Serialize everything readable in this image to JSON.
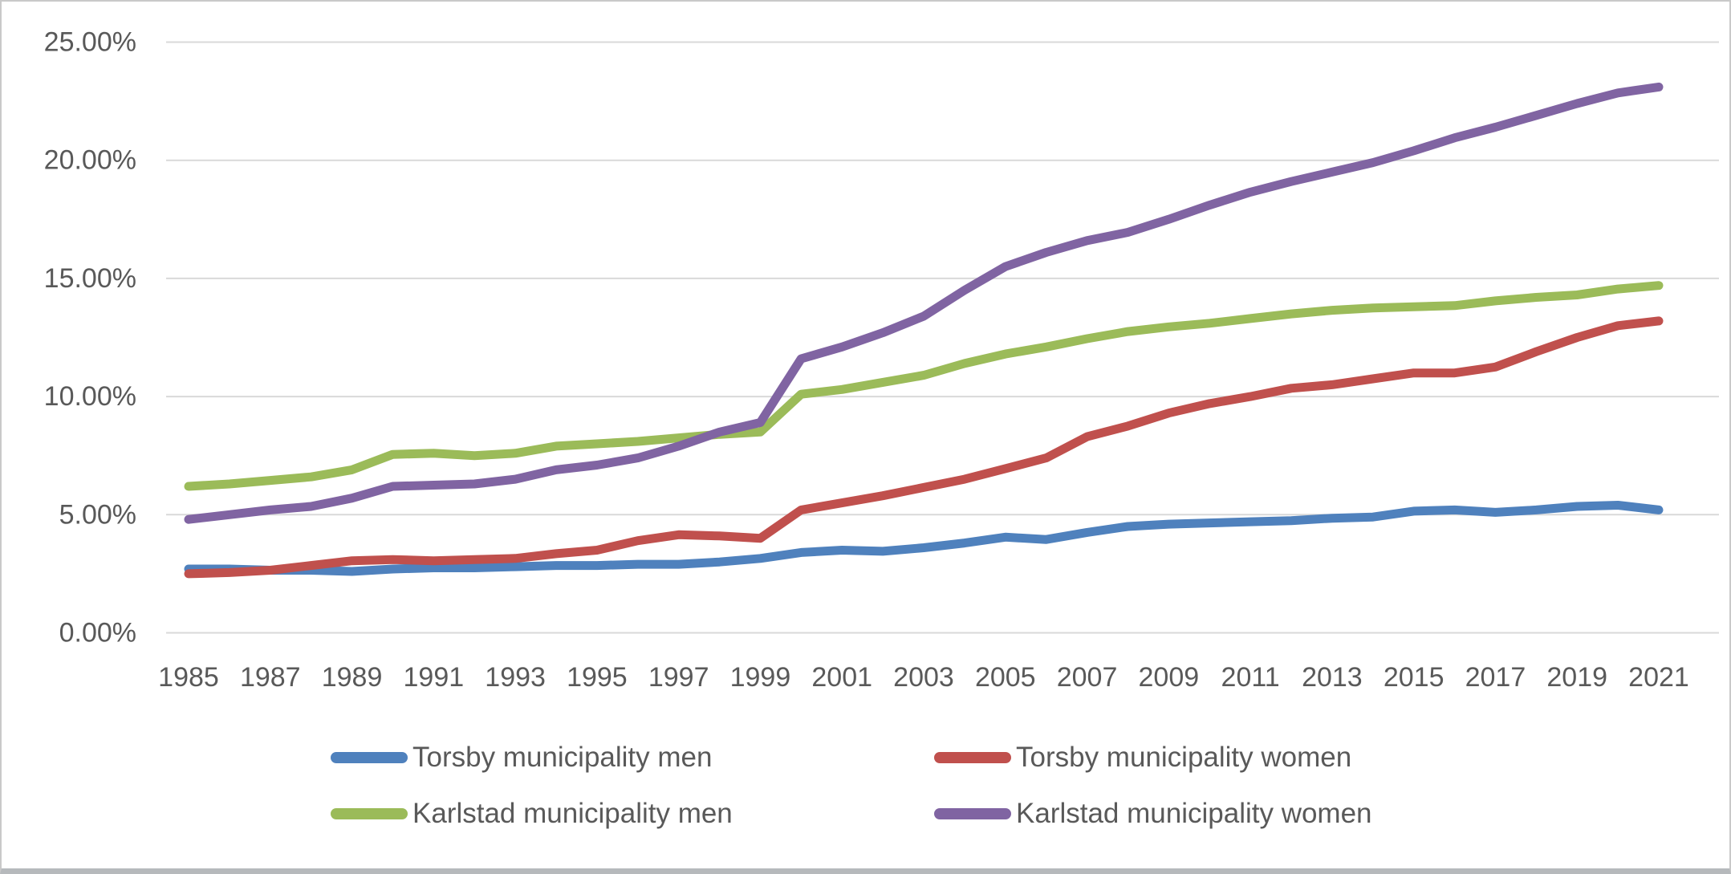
{
  "chart_data": {
    "type": "line",
    "x": [
      1985,
      1986,
      1987,
      1988,
      1989,
      1990,
      1991,
      1992,
      1993,
      1994,
      1995,
      1996,
      1997,
      1998,
      1999,
      2000,
      2001,
      2002,
      2003,
      2004,
      2005,
      2006,
      2007,
      2008,
      2009,
      2010,
      2011,
      2012,
      2013,
      2014,
      2015,
      2016,
      2017,
      2018,
      2019,
      2020,
      2021
    ],
    "series": [
      {
        "name": "Torsby municipality men",
        "color": "#4F81BD",
        "values": [
          2.7,
          2.7,
          2.65,
          2.65,
          2.6,
          2.7,
          2.75,
          2.75,
          2.8,
          2.85,
          2.85,
          2.9,
          2.9,
          3.0,
          3.15,
          3.4,
          3.5,
          3.45,
          3.6,
          3.8,
          4.05,
          3.95,
          4.25,
          4.5,
          4.6,
          4.65,
          4.7,
          4.75,
          4.85,
          4.9,
          5.15,
          5.2,
          5.1,
          5.2,
          5.35,
          5.4,
          5.2
        ]
      },
      {
        "name": "Torsby municipality women",
        "color": "#C0504D",
        "values": [
          2.5,
          2.55,
          2.65,
          2.85,
          3.05,
          3.1,
          3.05,
          3.1,
          3.15,
          3.35,
          3.5,
          3.9,
          4.15,
          4.1,
          4.0,
          5.2,
          5.5,
          5.8,
          6.15,
          6.5,
          6.95,
          7.4,
          8.3,
          8.75,
          9.3,
          9.7,
          10.0,
          10.35,
          10.5,
          10.75,
          11.0,
          11.0,
          11.25,
          11.9,
          12.5,
          13.0,
          13.2
        ]
      },
      {
        "name": "Karlstad municipality men",
        "color": "#9BBB59",
        "values": [
          6.2,
          6.3,
          6.45,
          6.6,
          6.9,
          7.55,
          7.6,
          7.5,
          7.6,
          7.9,
          8.0,
          8.1,
          8.25,
          8.4,
          8.5,
          10.1,
          10.3,
          10.6,
          10.9,
          11.4,
          11.8,
          12.1,
          12.45,
          12.75,
          12.95,
          13.1,
          13.3,
          13.5,
          13.65,
          13.75,
          13.8,
          13.85,
          14.05,
          14.2,
          14.3,
          14.55,
          14.7
        ]
      },
      {
        "name": "Karlstad municipality women",
        "color": "#8064A2",
        "values": [
          4.8,
          5.0,
          5.2,
          5.35,
          5.7,
          6.2,
          6.25,
          6.3,
          6.5,
          6.9,
          7.1,
          7.4,
          7.9,
          8.5,
          8.9,
          11.6,
          12.1,
          12.7,
          13.4,
          14.5,
          15.5,
          16.1,
          16.6,
          16.95,
          17.5,
          18.1,
          18.65,
          19.1,
          19.5,
          19.9,
          20.4,
          20.95,
          21.4,
          21.9,
          22.4,
          22.85,
          23.1
        ]
      }
    ],
    "title": "",
    "xlabel": "",
    "ylabel": "",
    "ylim": [
      0,
      25
    ],
    "y_tick_step": 5,
    "y_tick_labels": [
      "0.00%",
      "5.00%",
      "10.00%",
      "15.00%",
      "20.00%",
      "25.00%"
    ],
    "x_tick_labels": [
      "1985",
      "1987",
      "1989",
      "1991",
      "1993",
      "1995",
      "1997",
      "1999",
      "2001",
      "2003",
      "2005",
      "2007",
      "2009",
      "2011",
      "2013",
      "2015",
      "2017",
      "2019",
      "2021"
    ],
    "grid": true,
    "legend_position": "bottom",
    "colors": {
      "background": "#FFFFFF",
      "gridline": "#D9D9D9",
      "axis_text": "#595959",
      "frame_border": "#C9C9C9"
    }
  },
  "legend": {
    "rows": 2,
    "columns": 2
  }
}
